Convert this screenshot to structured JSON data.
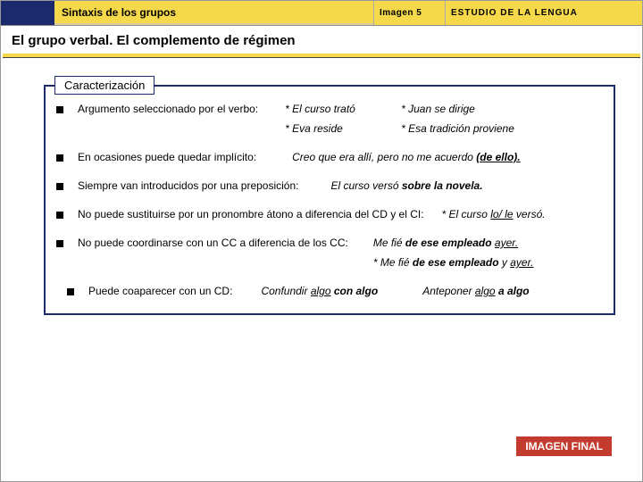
{
  "colors": {
    "navy": "#1a2a6c",
    "yellow": "#f5d94a",
    "badge": "#c23b2e",
    "white": "#ffffff",
    "text": "#000000",
    "border_gray": "#888888"
  },
  "header": {
    "title": "Sintaxis de los grupos",
    "image_label": "Imagen 5",
    "study_label": "ESTUDIO DE LA LENGUA"
  },
  "subtitle": "El grupo verbal. El complemento de régimen",
  "box": {
    "tab": "Caracterización",
    "items": [
      {
        "lead": "Argumento seleccionado por el verbo:",
        "grid": [
          "* El curso trató",
          "* Juan se dirige",
          "* Eva reside",
          "* Esa tradición proviene"
        ]
      },
      {
        "lead": "En ocasiones puede quedar implícito:",
        "trail_html": "Creo que era allí, pero no me acuerdo <span class=\"b u\">(de ello).</span>"
      },
      {
        "lead": "Siempre van introducidos por una preposición:",
        "trail_html": "El curso versó <span class=\"b\">sobre la novela.</span>"
      },
      {
        "lead": "No puede sustituirse por un pronombre átono a diferencia del CD y el CI:",
        "trail_html": "* El curso <span class=\"u\">lo/ le</span> versó."
      },
      {
        "lead": "No puede coordinarse con un CC a diferencia de los CC:",
        "stack": [
          "Me fié <span class=\"b\">de ese empleado</span> <span class=\"u\">ayer.</span>",
          "* Me fié <span class=\"b\">de ese empleado</span> y <span class=\"u\">ayer.</span>"
        ]
      },
      {
        "inset": true,
        "lead": "Puede coaparecer con un CD:",
        "inline": [
          "Confundir <span class=\"u\">algo</span> <span class=\"b\">con algo</span>",
          "Anteponer <span class=\"u\">algo</span> <span class=\"b\">a algo</span>"
        ]
      }
    ]
  },
  "final_badge": "IMAGEN FINAL"
}
